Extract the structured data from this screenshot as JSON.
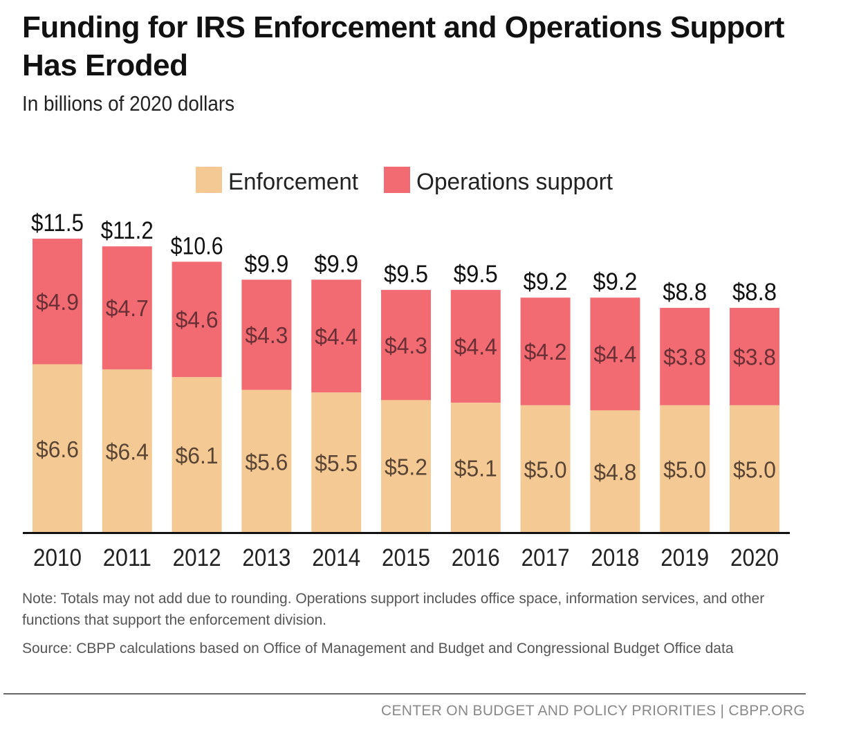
{
  "chart_data": {
    "type": "bar",
    "stacked": true,
    "title": "Funding for IRS Enforcement and Operations Support Has Eroded",
    "subtitle": "In billions of 2020 dollars",
    "categories": [
      "2010",
      "2011",
      "2012",
      "2013",
      "2014",
      "2015",
      "2016",
      "2017",
      "2018",
      "2019",
      "2020"
    ],
    "series": [
      {
        "name": "Enforcement",
        "color": "#f5c993",
        "values": [
          6.6,
          6.4,
          6.1,
          5.6,
          5.5,
          5.2,
          5.1,
          5.0,
          4.8,
          5.0,
          5.0
        ],
        "labels": [
          "$6.6",
          "$6.4",
          "$6.1",
          "$5.6",
          "$5.5",
          "$5.2",
          "$5.1",
          "$5.0",
          "$4.8",
          "$5.0",
          "$5.0"
        ]
      },
      {
        "name": "Operations support",
        "color": "#f26b72",
        "values": [
          4.9,
          4.7,
          4.6,
          4.3,
          4.4,
          4.3,
          4.4,
          4.2,
          4.4,
          3.8,
          3.8
        ],
        "labels": [
          "$4.9",
          "$4.7",
          "$4.6",
          "$4.3",
          "$4.4",
          "$4.3",
          "$4.4",
          "$4.2",
          "$4.4",
          "$3.8",
          "$3.8"
        ]
      }
    ],
    "totals": [
      11.5,
      11.2,
      10.6,
      9.9,
      9.9,
      9.5,
      9.5,
      9.2,
      9.2,
      8.8,
      8.8
    ],
    "total_labels": [
      "$11.5",
      "$11.2",
      "$10.6",
      "$9.9",
      "$9.9",
      "$9.5",
      "$9.5",
      "$9.2",
      "$9.2",
      "$8.8",
      "$8.8"
    ],
    "ylim": [
      0,
      12
    ],
    "grid": false,
    "legend": "top-center",
    "xlabel": "",
    "ylabel": ""
  },
  "note": "Note: Totals may not add due to rounding. Operations support includes office space, information services, and other functions that support the enforcement division.",
  "source": "Source: CBPP calculations based on Office of Management and Budget and Congressional Budget Office data",
  "footer": "CENTER ON BUDGET AND POLICY PRIORITIES | CBPP.ORG"
}
